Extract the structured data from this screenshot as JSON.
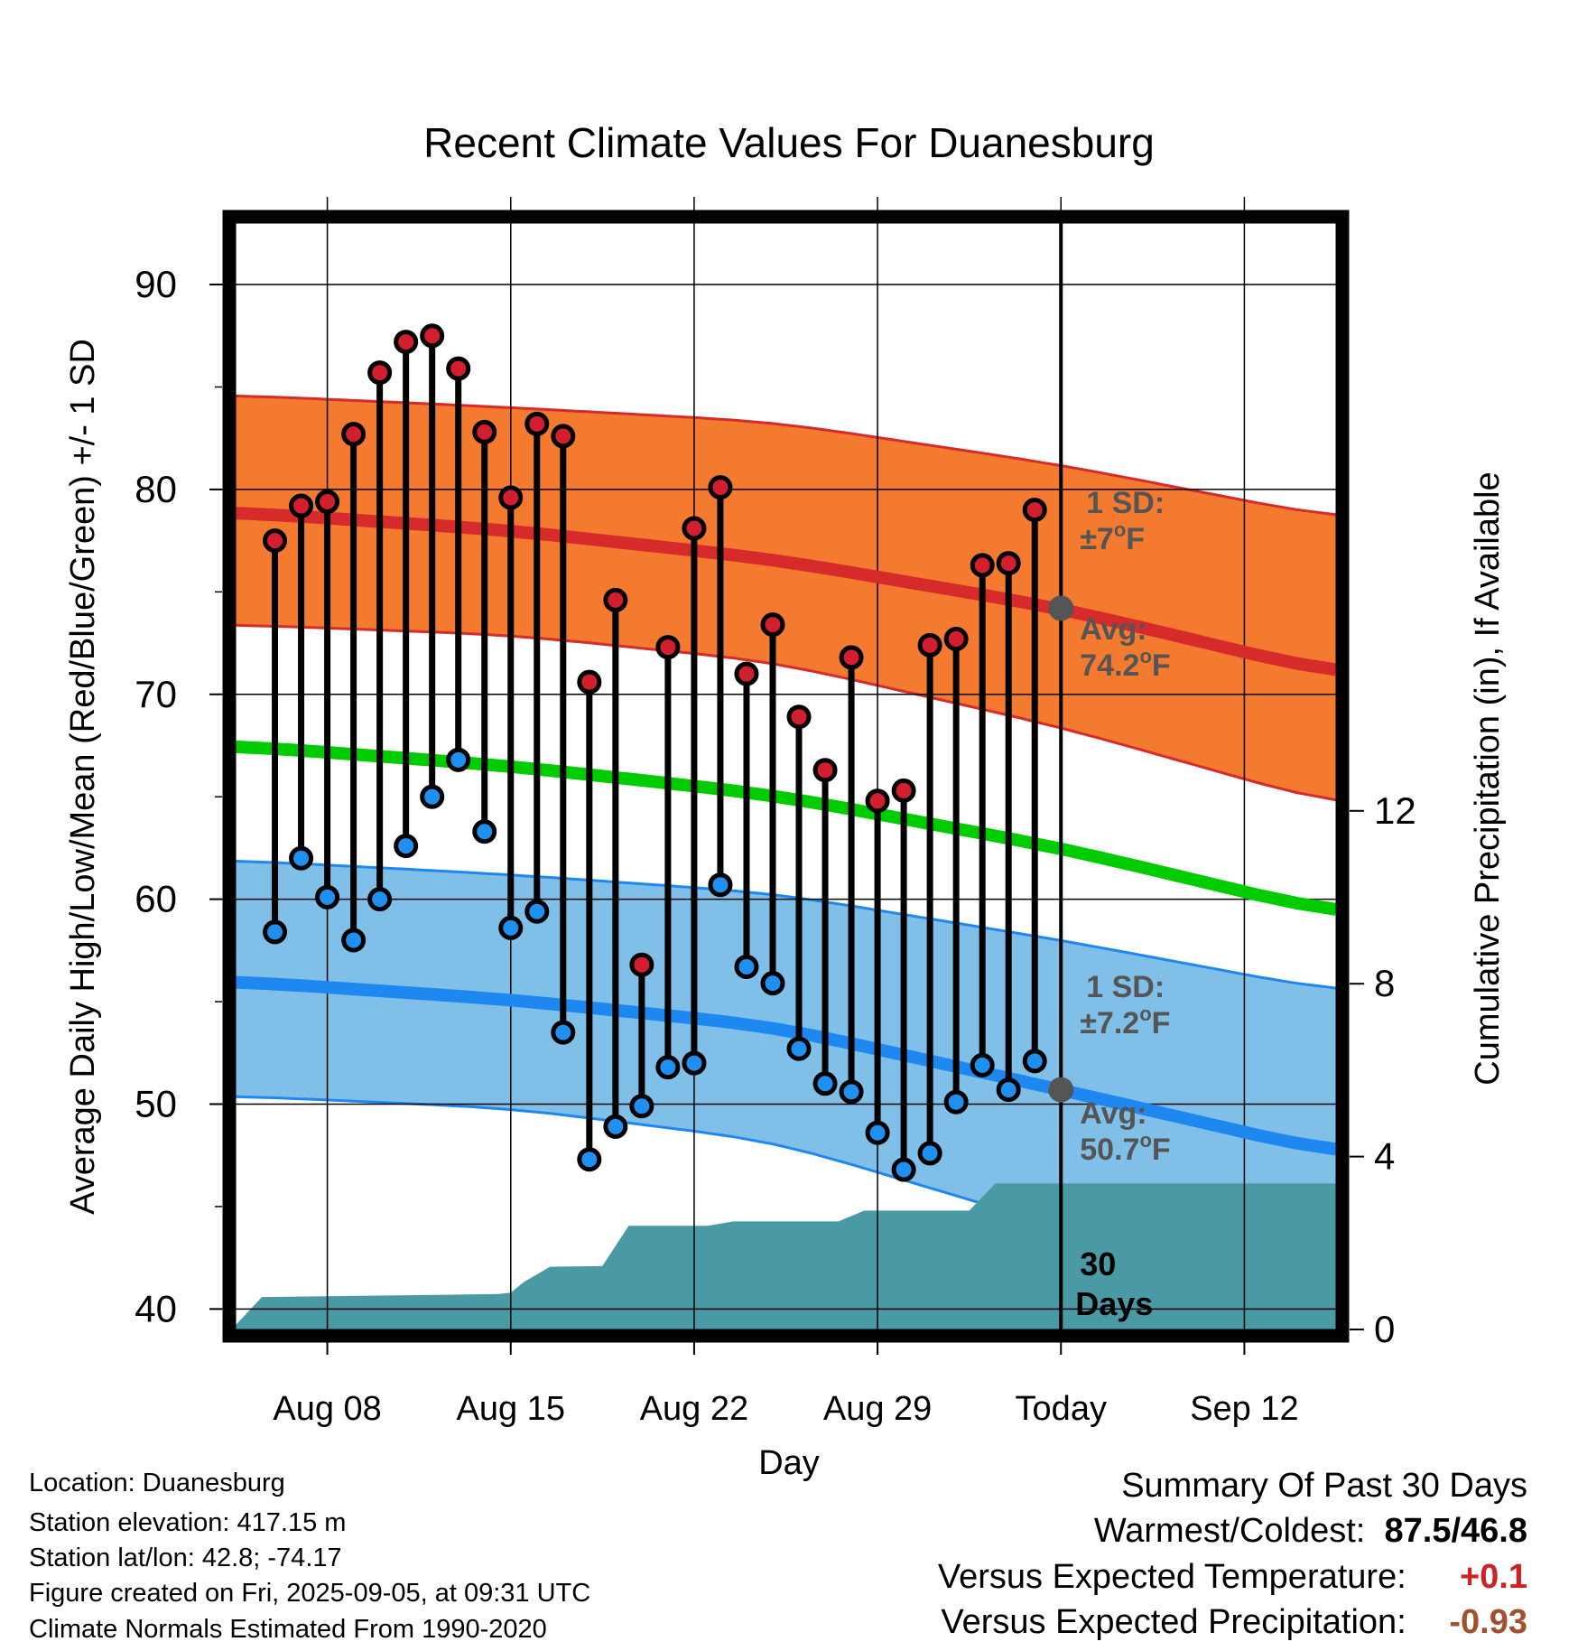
{
  "chart_data": {
    "type": "line",
    "title": "Recent Climate Values For Duanesburg",
    "xlabel": "Day",
    "ylabel": "Average Daily High/Low/Mean (Red/Blue/Green) +/- 1 SD",
    "y2label": "Cumulative Precipitation (in), If Available",
    "ylim": [
      39,
      93
    ],
    "y2lim": [
      0,
      25.6
    ],
    "xlim": [
      -0.5,
      41.5
    ],
    "x_ticks": [
      {
        "x": 3,
        "label": "Aug 08"
      },
      {
        "x": 10,
        "label": "Aug 15"
      },
      {
        "x": 17,
        "label": "Aug 22"
      },
      {
        "x": 24,
        "label": "Aug 29"
      },
      {
        "x": 31,
        "label": "Today"
      },
      {
        "x": 38,
        "label": "Sep 12"
      }
    ],
    "y_ticks": [
      40,
      50,
      60,
      70,
      80,
      90
    ],
    "y2_ticks": [
      0,
      4,
      8,
      12
    ],
    "today_x": 31,
    "daily_high": [
      77.5,
      79.2,
      79.4,
      82.7,
      85.7,
      87.2,
      87.5,
      85.9,
      82.8,
      79.6,
      83.2,
      82.6,
      70.6,
      74.6,
      56.8,
      72.3,
      78.1,
      80.1,
      71.0,
      73.4,
      68.9,
      66.3,
      71.8,
      64.8,
      65.3,
      72.4,
      72.7,
      76.3,
      76.4,
      79.0
    ],
    "daily_low": [
      58.4,
      62.0,
      60.1,
      58.0,
      60.0,
      62.6,
      65.0,
      66.8,
      63.3,
      58.6,
      59.4,
      53.5,
      47.3,
      48.9,
      49.9,
      51.8,
      52.0,
      60.7,
      56.7,
      55.9,
      52.7,
      51.0,
      50.6,
      48.6,
      46.8,
      47.6,
      50.1,
      51.9,
      50.7,
      52.1
    ],
    "series": [
      {
        "name": "Avg High",
        "x": [
          -0.5,
          10,
          20,
          31,
          41.5
        ],
        "values": [
          78.9,
          78.0,
          76.6,
          74.2,
          71.0
        ]
      },
      {
        "name": "Avg Mean",
        "x": [
          -0.5,
          10,
          20,
          31,
          41.5
        ],
        "values": [
          67.5,
          66.5,
          65.1,
          62.5,
          59.3
        ]
      },
      {
        "name": "Avg Low",
        "x": [
          -0.5,
          10,
          20,
          31,
          41.5
        ],
        "values": [
          56.0,
          55.1,
          53.8,
          50.7,
          47.6
        ]
      }
    ],
    "sd_high_band": {
      "x": [
        -0.5,
        10,
        20,
        31,
        41.5
      ],
      "upper": [
        84.6,
        84.0,
        83.3,
        81.2,
        78.6
      ],
      "lower": [
        73.4,
        72.9,
        71.6,
        68.4,
        64.6
      ]
    },
    "sd_low_band": {
      "x": [
        -0.5,
        10,
        20,
        31,
        41.5
      ],
      "upper": [
        61.9,
        61.2,
        60.3,
        58.0,
        55.5
      ],
      "lower": [
        50.4,
        49.8,
        48.2,
        44.0,
        40.5
      ]
    },
    "precip": {
      "x": [
        -0.5,
        0.5,
        9.5,
        10,
        10.5,
        11.5,
        13.5,
        14.5,
        17.5,
        18.5,
        22.5,
        23.5,
        27.5,
        28.5,
        41.5
      ],
      "values": [
        0.1,
        0.75,
        0.82,
        0.85,
        1.1,
        1.45,
        1.47,
        2.4,
        2.4,
        2.5,
        2.5,
        2.75,
        2.75,
        3.38,
        3.38
      ]
    },
    "annotations": [
      {
        "target": "high",
        "sd_label": "1 SD:",
        "sd_value": "±7",
        "avg_label": "Avg:",
        "avg_value": "74.2",
        "unit": "F"
      },
      {
        "target": "low",
        "sd_label": "1 SD:",
        "sd_value": "±7.2",
        "avg_label": "Avg:",
        "avg_value": "50.7",
        "unit": "F"
      }
    ],
    "window_label_number": "30",
    "window_label_unit": "Days",
    "colors": {
      "high_band": "#f47a30",
      "high_line": "#d72a2a",
      "low_band": "#80bfe8",
      "low_line": "#1e88f0",
      "mean_line": "#00cc00",
      "precip": "#4a9aa5",
      "high_marker": "#d21e2e",
      "low_marker": "#1f8ff0",
      "annotation": "#555555"
    }
  },
  "info": {
    "location": "Location: Duanesburg",
    "elevation": "Station elevation: 417.15 m",
    "latlon": "Station lat/lon: 42.8; -74.17",
    "created": "Figure created on Fri, 2025-09-05, at 09:31 UTC",
    "normals": "Climate Normals Estimated From 1990-2020"
  },
  "summary": {
    "title": "Summary Of Past 30 Days",
    "extremes_label": "Warmest/Coldest:",
    "warmest": "87.5",
    "coldest": "46.8",
    "temp_label": "Versus Expected Temperature:",
    "temp_value": "+0.1",
    "temp_color": "#cc2222",
    "precip_label": "Versus Expected Precipitation:",
    "precip_value": "-0.93",
    "precip_color": "#a0522d"
  }
}
